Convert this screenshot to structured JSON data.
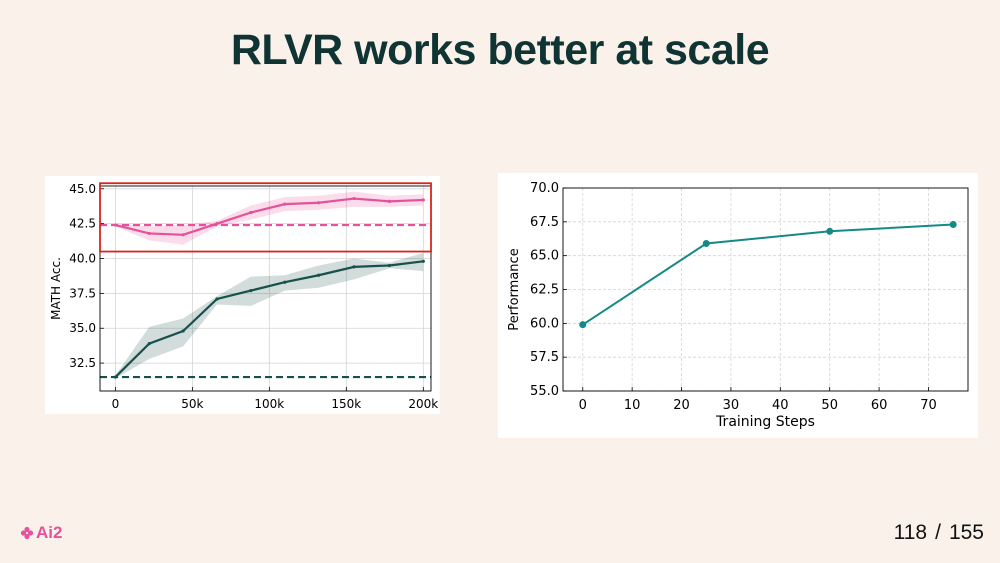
{
  "slide": {
    "title": "RLVR works better at scale",
    "logo_text": "Ai2",
    "page_current": "118",
    "page_separator": "/",
    "page_total": "155"
  },
  "colors": {
    "background": "#faf2ea",
    "title": "#0f3433",
    "pink": "#e5519a",
    "dark_teal": "#17504c",
    "teal": "#138a85",
    "highlight_box": "#d6261e"
  },
  "chart_data": [
    {
      "type": "line",
      "title": "",
      "xlabel": "",
      "ylabel": "MATH Acc.",
      "xlim": [
        -10000,
        205000
      ],
      "ylim": [
        30.5,
        45.2
      ],
      "x_ticks": [
        0,
        50000,
        100000,
        150000,
        200000
      ],
      "x_tick_labels": [
        "0",
        "50k",
        "100k",
        "150k",
        "200k"
      ],
      "y_ticks": [
        32.5,
        35.0,
        37.5,
        40.0,
        42.5,
        45.0
      ],
      "y_tick_labels": [
        "32.5",
        "35.0",
        "37.5",
        "40.0",
        "42.5",
        "45.0"
      ],
      "grid": true,
      "series": [
        {
          "color": "#e5519a",
          "x": [
            0,
            22000,
            44000,
            66000,
            88000,
            110000,
            132000,
            155000,
            178000,
            200000
          ],
          "values": [
            42.4,
            41.8,
            41.7,
            42.5,
            43.3,
            43.9,
            44.0,
            44.3,
            44.1,
            44.2
          ],
          "band_low": [
            42.3,
            41.3,
            41.0,
            42.3,
            42.8,
            43.4,
            43.5,
            43.7,
            43.7,
            43.8
          ],
          "band_high": [
            42.5,
            42.3,
            42.4,
            42.7,
            43.8,
            44.4,
            44.5,
            44.8,
            44.5,
            44.6
          ]
        },
        {
          "color": "#17504c",
          "x": [
            0,
            22000,
            44000,
            66000,
            88000,
            110000,
            132000,
            155000,
            178000,
            200000
          ],
          "values": [
            31.5,
            33.9,
            34.8,
            37.1,
            37.7,
            38.3,
            38.8,
            39.4,
            39.5,
            39.8
          ],
          "band_low": [
            31.4,
            32.8,
            33.7,
            36.7,
            36.6,
            37.7,
            37.9,
            38.5,
            39.3,
            39.1
          ],
          "band_high": [
            31.6,
            35.1,
            35.7,
            37.3,
            38.7,
            38.8,
            39.5,
            40.0,
            39.7,
            40.4
          ]
        }
      ],
      "baselines": [
        {
          "y": 42.4,
          "color": "#e5519a",
          "style": "dashed"
        },
        {
          "y": 31.5,
          "color": "#17504c",
          "style": "dashed"
        }
      ],
      "highlight_box": {
        "x": [
          -10000,
          205000
        ],
        "y": [
          40.5,
          45.4
        ],
        "color": "#d6261e"
      }
    },
    {
      "type": "line",
      "title": "",
      "xlabel": "Training Steps",
      "ylabel": "Performance",
      "xlim": [
        -4,
        78
      ],
      "ylim": [
        55.0,
        70.0
      ],
      "x_ticks": [
        0,
        10,
        20,
        30,
        40,
        50,
        60,
        70
      ],
      "x_tick_labels": [
        "0",
        "10",
        "20",
        "30",
        "40",
        "50",
        "60",
        "70"
      ],
      "y_ticks": [
        55.0,
        57.5,
        60.0,
        62.5,
        65.0,
        67.5,
        70.0
      ],
      "y_tick_labels": [
        "55.0",
        "57.5",
        "60.0",
        "62.5",
        "65.0",
        "67.5",
        "70.0"
      ],
      "grid": true,
      "grid_style": "dashed",
      "series": [
        {
          "color": "#138a85",
          "x": [
            0,
            25,
            50,
            75
          ],
          "values": [
            59.9,
            65.9,
            66.8,
            67.3
          ],
          "markers": true
        }
      ]
    }
  ]
}
